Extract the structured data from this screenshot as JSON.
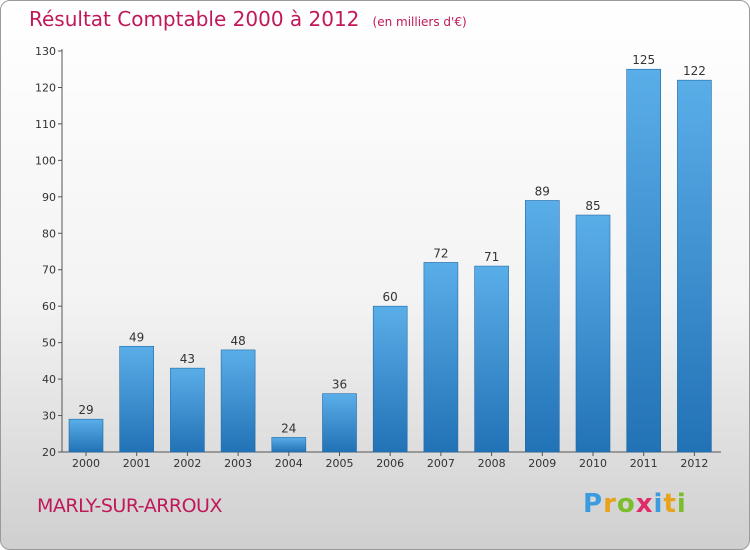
{
  "header": {
    "title": "Résultat Comptable 2000 à 2012",
    "subtitle": "(en milliers d'€)"
  },
  "footer": {
    "city": "MARLY-SUR-ARROUX",
    "logo": {
      "letters": [
        "P",
        "r",
        "o",
        "x",
        "i",
        "t",
        "i"
      ],
      "colors": [
        "#3a9be0",
        "#e8a21c",
        "#7cbd2b",
        "#e02a6a",
        "#3a9be0",
        "#e8a21c",
        "#7cbd2b"
      ]
    }
  },
  "colors": {
    "title": "#c0185a",
    "bar_light": "#5aaee8",
    "bar_dark": "#2272b6"
  },
  "chart_data": {
    "type": "bar",
    "title": "Résultat Comptable 2000 à 2012",
    "subtitle": "(en milliers d'€)",
    "xlabel": "",
    "ylabel": "",
    "categories": [
      "2000",
      "2001",
      "2002",
      "2003",
      "2004",
      "2005",
      "2006",
      "2007",
      "2008",
      "2009",
      "2010",
      "2011",
      "2012"
    ],
    "values": [
      29,
      49,
      43,
      48,
      24,
      36,
      60,
      72,
      71,
      89,
      85,
      125,
      122
    ],
    "ylim": [
      20,
      130
    ],
    "yticks": [
      20,
      30,
      40,
      50,
      60,
      70,
      80,
      90,
      100,
      110,
      120,
      130
    ],
    "grid": false,
    "data_labels": true
  }
}
